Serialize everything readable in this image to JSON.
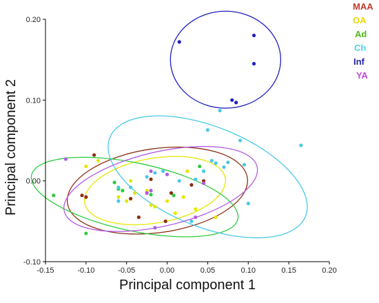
{
  "chart_data": {
    "type": "scatter",
    "title": "",
    "xlabel": "Principal component 1",
    "ylabel": "Principal component 2",
    "xlim": [
      -0.15,
      0.2
    ],
    "ylim": [
      -0.1,
      0.2
    ],
    "x_ticks": [
      "-0.15",
      "-0.10",
      "-0.05",
      "0.00",
      "0.05",
      "0.10",
      "0.15",
      "0.20"
    ],
    "x_tick_values": [
      -0.15,
      -0.1,
      -0.05,
      0.0,
      0.05,
      0.1,
      0.15,
      0.2
    ],
    "y_ticks": [
      "-0.10",
      "0.00",
      "0.10",
      "0.20"
    ],
    "y_tick_values": [
      -0.1,
      0.0,
      0.1,
      0.2
    ],
    "grid": false,
    "legend_position": "top-right",
    "series": [
      {
        "name": "MAA",
        "color": "#8b2e12",
        "label_color": "#c0392b",
        "points": [
          [
            -0.105,
            -0.018
          ],
          [
            -0.1,
            -0.02
          ],
          [
            -0.09,
            0.032
          ],
          [
            -0.045,
            -0.022
          ],
          [
            -0.035,
            -0.045
          ],
          [
            -0.025,
            -0.015
          ],
          [
            -0.02,
            0.002
          ],
          [
            -0.002,
            -0.05
          ],
          [
            0.005,
            -0.015
          ],
          [
            0.03,
            -0.005
          ],
          [
            0.045,
            0.0
          ]
        ],
        "ellipse": {
          "cx": -0.012,
          "cy": -0.012,
          "rx": 0.112,
          "ry": 0.052,
          "angle_deg": -8
        }
      },
      {
        "name": "OA",
        "color": "#e6e600",
        "label_color": "#e6d800",
        "points": [
          [
            -0.1,
            0.018
          ],
          [
            -0.085,
            0.025
          ],
          [
            -0.06,
            -0.02
          ],
          [
            -0.05,
            -0.025
          ],
          [
            -0.045,
            0.0
          ],
          [
            -0.04,
            -0.015
          ],
          [
            -0.025,
            -0.012
          ],
          [
            -0.02,
            -0.03
          ],
          [
            -0.015,
            -0.032
          ],
          [
            0.0,
            -0.025
          ],
          [
            0.01,
            -0.04
          ],
          [
            0.02,
            -0.02
          ],
          [
            0.025,
            0.012
          ],
          [
            0.035,
            -0.035
          ],
          [
            0.06,
            -0.045
          ]
        ],
        "ellipse": {
          "cx": -0.015,
          "cy": -0.012,
          "rx": 0.088,
          "ry": 0.04,
          "angle_deg": -10
        }
      },
      {
        "name": "Ad",
        "color": "#2ecc40",
        "label_color": "#4cbb17",
        "points": [
          [
            -0.14,
            -0.018
          ],
          [
            -0.1,
            -0.065
          ],
          [
            -0.065,
            -0.002
          ],
          [
            -0.06,
            -0.01
          ],
          [
            -0.055,
            -0.012
          ],
          [
            -0.02,
            -0.017
          ],
          [
            0.008,
            -0.018
          ],
          [
            0.04,
            0.018
          ]
        ],
        "ellipse": {
          "cx": -0.04,
          "cy": -0.02,
          "rx": 0.13,
          "ry": 0.042,
          "angle_deg": 12
        }
      },
      {
        "name": "Ch",
        "color": "#48c9e8",
        "label_color": "#4fd0e6",
        "points": [
          [
            -0.06,
            -0.008
          ],
          [
            -0.045,
            -0.008
          ],
          [
            -0.025,
            0.005
          ],
          [
            -0.015,
            0.01
          ],
          [
            -0.005,
            0.012
          ],
          [
            0.015,
            0.0
          ],
          [
            0.035,
            0.002
          ],
          [
            0.045,
            0.012
          ],
          [
            0.05,
            0.063
          ],
          [
            0.055,
            0.025
          ],
          [
            0.06,
            0.022
          ],
          [
            0.065,
            0.087
          ],
          [
            0.07,
            0.017
          ],
          [
            0.075,
            0.023
          ],
          [
            0.09,
            0.05
          ],
          [
            0.095,
            0.02
          ],
          [
            0.1,
            -0.028
          ],
          [
            0.165,
            0.044
          ],
          [
            0.03,
            -0.05
          ],
          [
            -0.06,
            -0.025
          ]
        ],
        "ellipse": {
          "cx": 0.05,
          "cy": 0.005,
          "rx": 0.13,
          "ry": 0.062,
          "angle_deg": 22
        }
      },
      {
        "name": "Inf",
        "color": "#1f1fbf",
        "label_color": "#1f1fa8",
        "points": [
          [
            0.015,
            0.172
          ],
          [
            0.08,
            0.1
          ],
          [
            0.085,
            0.097
          ],
          [
            0.107,
            0.18
          ],
          [
            0.107,
            0.145
          ]
        ],
        "ellipse": {
          "cx": 0.072,
          "cy": 0.15,
          "rx": 0.068,
          "ry": 0.06,
          "angle_deg": 0
        }
      },
      {
        "name": "YA",
        "color": "#b15be0",
        "label_color": "#c24bdd",
        "points": [
          [
            -0.125,
            0.027
          ],
          [
            -0.025,
            -0.015
          ],
          [
            -0.02,
            -0.012
          ],
          [
            -0.02,
            0.012
          ],
          [
            -0.015,
            -0.058
          ],
          [
            0.0,
            0.008
          ],
          [
            0.035,
            -0.045
          ],
          [
            0.045,
            -0.003
          ]
        ],
        "ellipse": {
          "cx": -0.008,
          "cy": -0.01,
          "rx": 0.122,
          "ry": 0.046,
          "angle_deg": -13
        }
      }
    ]
  }
}
